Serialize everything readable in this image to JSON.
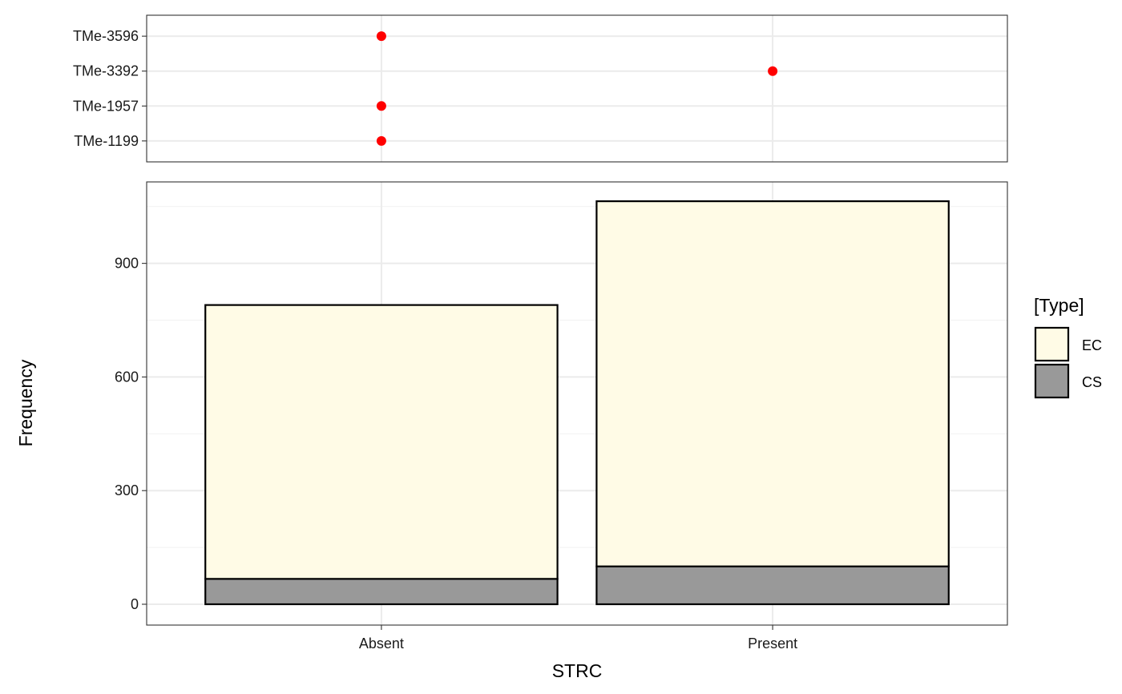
{
  "chart_data": [
    {
      "type": "scatter",
      "x_categories": [
        "Absent",
        "Present"
      ],
      "y_categories": [
        "TMe-1199",
        "TMe-1957",
        "TMe-3392",
        "TMe-3596"
      ],
      "points": [
        {
          "x": "Absent",
          "y": "TMe-3596"
        },
        {
          "x": "Present",
          "y": "TMe-3392"
        },
        {
          "x": "Absent",
          "y": "TMe-1957"
        },
        {
          "x": "Absent",
          "y": "TMe-1199"
        }
      ],
      "point_color": "#ff0000",
      "grid": true
    },
    {
      "type": "bar",
      "stacked": true,
      "categories": [
        "Absent",
        "Present"
      ],
      "series": [
        {
          "name": "CS",
          "values": [
            67,
            100
          ],
          "color": "#999999"
        },
        {
          "name": "EC",
          "values": [
            723,
            964
          ],
          "color": "#fffbe6"
        }
      ],
      "xlabel": "STRC",
      "ylabel": "Frequency",
      "ylim": [
        -55,
        1115
      ],
      "yticks": [
        0,
        300,
        600,
        900
      ],
      "ytick_labels": [
        "0",
        "300",
        "600",
        "900"
      ],
      "grid": true,
      "legend": {
        "title": "[Type]",
        "position": "right",
        "entries": [
          {
            "label": "EC",
            "color": "#fffbe6"
          },
          {
            "label": "CS",
            "color": "#999999"
          }
        ]
      }
    }
  ]
}
